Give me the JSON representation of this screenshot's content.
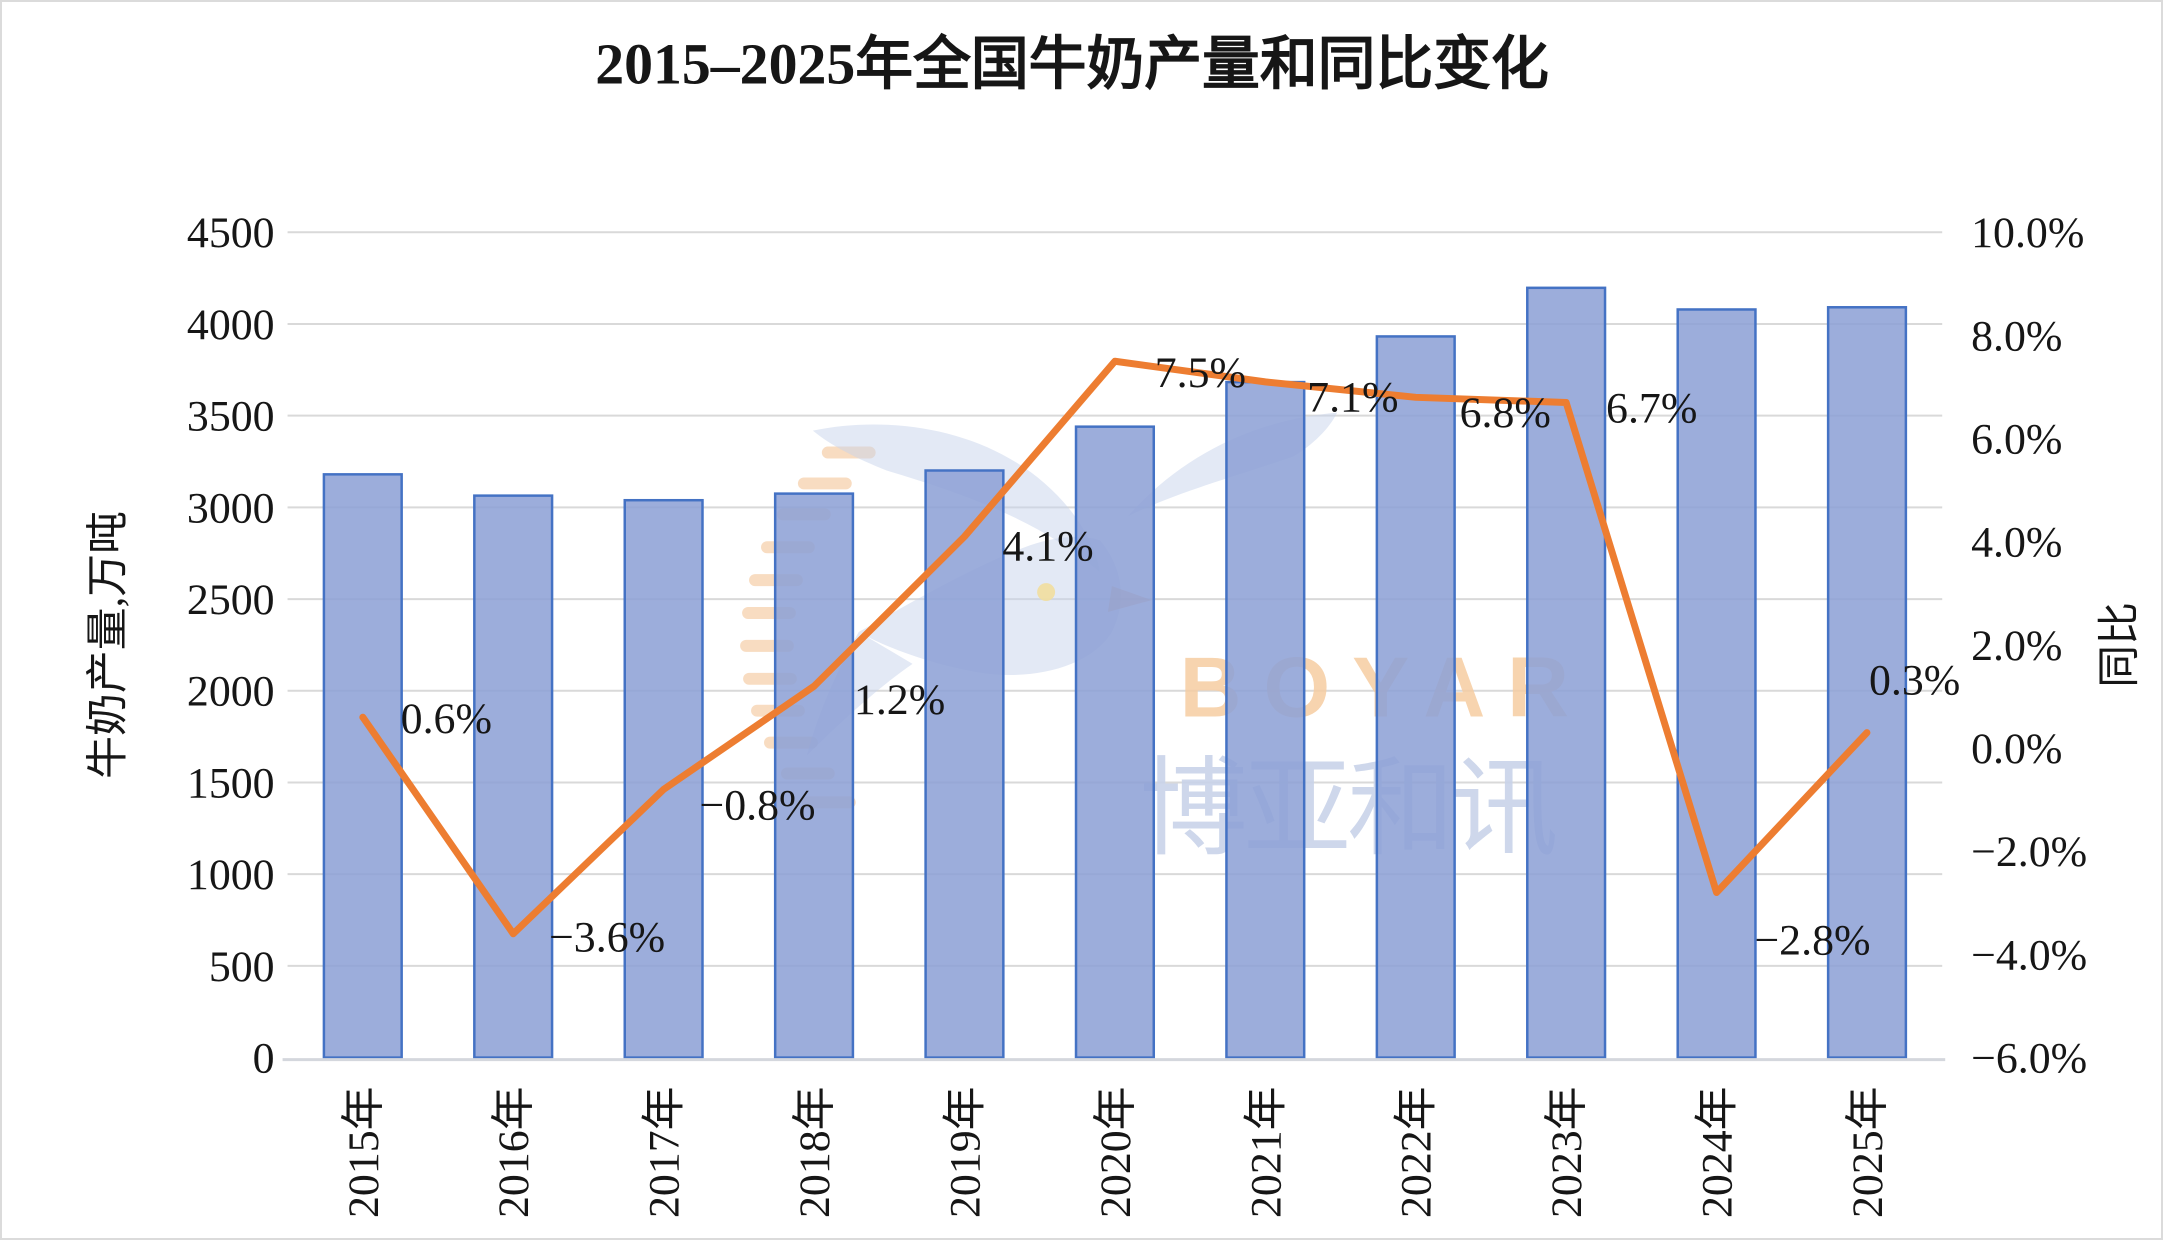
{
  "title": "2015–2025年全国牛奶产量和同比变化",
  "watermark": {
    "latin": "BOYAR",
    "cjk": "博亚和讯"
  },
  "chart_data": {
    "type": "combo bar+line",
    "title": "2015–2025年全国牛奶产量和同比变化",
    "categories": [
      "2015年",
      "2016年",
      "2017年",
      "2018年",
      "2019年",
      "2020年",
      "2021年",
      "2022年",
      "2023年",
      "2024年",
      "2025年"
    ],
    "series": [
      {
        "name": "牛奶产量",
        "type": "bar",
        "axis": "left",
        "values": [
          3180,
          3064,
          3039,
          3075,
          3201,
          3440,
          3683,
          3932,
          4197,
          4079,
          4091
        ]
      },
      {
        "name": "同比",
        "type": "line",
        "axis": "right",
        "values": [
          0.6,
          -3.6,
          -0.8,
          1.2,
          4.1,
          7.5,
          7.1,
          6.8,
          6.7,
          -2.8,
          0.3
        ],
        "point_labels": [
          "0.6%",
          "−3.6%",
          "−0.8%",
          "1.2%",
          "4.1%",
          "7.5%",
          "7.1%",
          "6.8%",
          "6.7%",
          "−2.8%",
          "0.3%"
        ]
      }
    ],
    "left_axis": {
      "title": "牛奶产量,万吨",
      "min": 0,
      "max": 4500,
      "step": 500,
      "tick_labels": [
        "0",
        "500",
        "1000",
        "1500",
        "2000",
        "2500",
        "3000",
        "3500",
        "4000",
        "4500"
      ]
    },
    "right_axis": {
      "title": "同比",
      "min": -6,
      "max": 10,
      "step": 2,
      "tick_labels": [
        "−6.0%",
        "−4.0%",
        "−2.0%",
        "0.0%",
        "2.0%",
        "4.0%",
        "6.0%",
        "8.0%",
        "10.0%"
      ]
    },
    "grid": true,
    "legend": "none",
    "colors": {
      "bar_fill": "#8DA1D6",
      "bar_border": "#4472C4",
      "line": "#ED7D31",
      "gridline": "#D9D9D9",
      "axis_line": "#D4D7DD",
      "watermark_orange": "#F5C9A0",
      "watermark_blue": "#C7D3EC",
      "watermark_text_orange": "#F6CDA2",
      "watermark_text_blue": "#C9D3E9"
    }
  }
}
